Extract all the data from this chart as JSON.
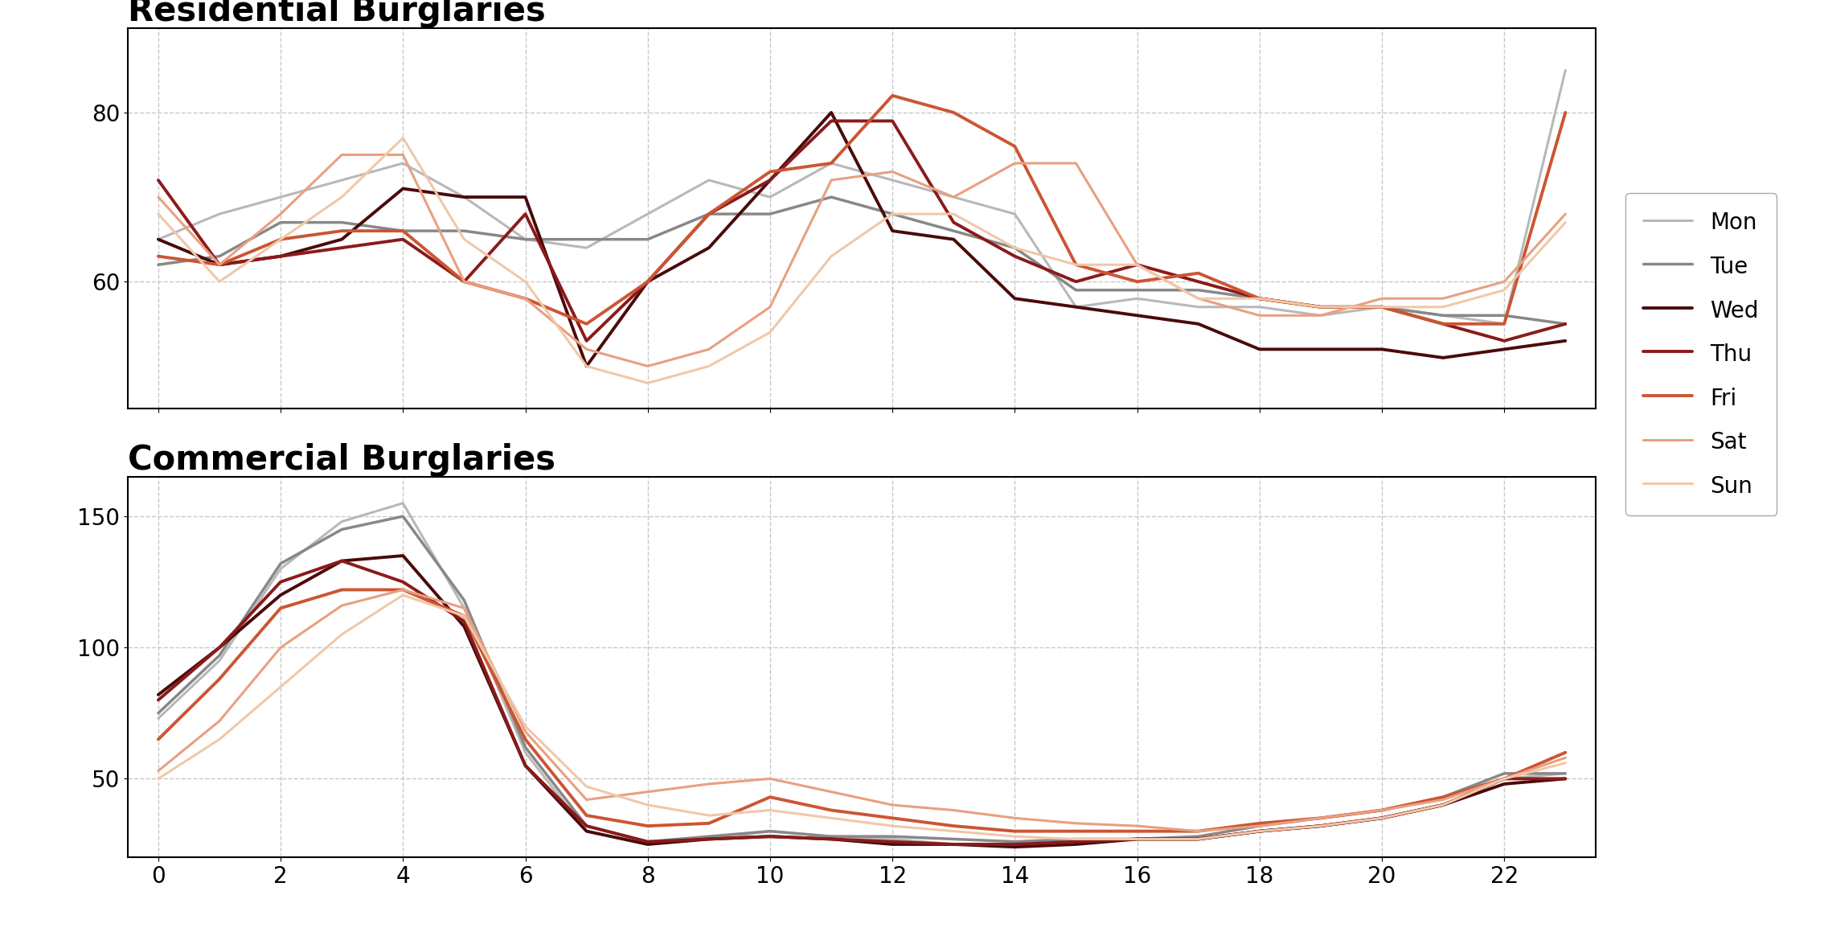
{
  "title_top": "Residential Burglaries",
  "title_bottom": "Commercial Burglaries",
  "days": [
    "Mon",
    "Tue",
    "Wed",
    "Thu",
    "Fri",
    "Sat",
    "Sun"
  ],
  "colors": {
    "Mon": "#b8b8b8",
    "Tue": "#888888",
    "Wed": "#4a0a0a",
    "Thu": "#8b1a1a",
    "Fri": "#cc5533",
    "Sat": "#e8a080",
    "Sun": "#f0c8a8"
  },
  "linewidths": {
    "Mon": 2.2,
    "Tue": 2.5,
    "Wed": 2.8,
    "Thu": 2.8,
    "Fri": 2.8,
    "Sat": 2.2,
    "Sun": 2.2
  },
  "x": [
    0,
    1,
    2,
    3,
    4,
    5,
    6,
    7,
    8,
    9,
    10,
    11,
    12,
    13,
    14,
    15,
    16,
    17,
    18,
    19,
    20,
    21,
    22,
    23
  ],
  "residential": {
    "Mon": [
      65,
      68,
      70,
      72,
      74,
      70,
      65,
      64,
      68,
      72,
      70,
      74,
      72,
      70,
      68,
      57,
      58,
      57,
      57,
      56,
      57,
      56,
      55,
      85
    ],
    "Tue": [
      62,
      63,
      67,
      67,
      66,
      66,
      65,
      65,
      65,
      68,
      68,
      70,
      68,
      66,
      64,
      59,
      59,
      59,
      58,
      57,
      57,
      56,
      56,
      55
    ],
    "Wed": [
      65,
      62,
      63,
      65,
      71,
      70,
      70,
      50,
      60,
      64,
      72,
      80,
      66,
      65,
      58,
      57,
      56,
      55,
      52,
      52,
      52,
      51,
      52,
      53
    ],
    "Thu": [
      72,
      62,
      63,
      64,
      65,
      60,
      68,
      53,
      60,
      68,
      72,
      79,
      79,
      67,
      63,
      60,
      62,
      60,
      58,
      57,
      57,
      55,
      53,
      55
    ],
    "Fri": [
      63,
      62,
      65,
      66,
      66,
      60,
      58,
      55,
      60,
      68,
      73,
      74,
      82,
      80,
      76,
      62,
      60,
      61,
      58,
      57,
      57,
      55,
      55,
      80
    ],
    "Sat": [
      70,
      62,
      68,
      75,
      75,
      60,
      58,
      52,
      50,
      52,
      57,
      72,
      73,
      70,
      74,
      74,
      62,
      58,
      56,
      56,
      58,
      58,
      60,
      68
    ],
    "Sun": [
      68,
      60,
      65,
      70,
      77,
      65,
      60,
      50,
      48,
      50,
      54,
      63,
      68,
      68,
      64,
      62,
      62,
      58,
      58,
      57,
      57,
      57,
      59,
      67
    ]
  },
  "commercial": {
    "Mon": [
      73,
      95,
      130,
      148,
      155,
      115,
      60,
      30,
      25,
      27,
      30,
      28,
      27,
      25,
      25,
      26,
      27,
      27,
      30,
      32,
      35,
      40,
      50,
      52
    ],
    "Tue": [
      75,
      97,
      132,
      145,
      150,
      118,
      62,
      32,
      26,
      28,
      30,
      28,
      28,
      27,
      26,
      27,
      27,
      28,
      32,
      35,
      38,
      43,
      52,
      52
    ],
    "Wed": [
      82,
      100,
      120,
      133,
      135,
      108,
      55,
      30,
      25,
      27,
      28,
      27,
      25,
      25,
      24,
      25,
      27,
      27,
      30,
      32,
      35,
      40,
      48,
      50
    ],
    "Thu": [
      80,
      100,
      125,
      133,
      125,
      110,
      55,
      32,
      26,
      27,
      28,
      27,
      26,
      25,
      25,
      26,
      27,
      27,
      30,
      32,
      35,
      40,
      50,
      50
    ],
    "Fri": [
      65,
      88,
      115,
      122,
      122,
      112,
      65,
      36,
      32,
      33,
      43,
      38,
      35,
      32,
      30,
      30,
      30,
      30,
      33,
      35,
      38,
      43,
      50,
      60
    ],
    "Sat": [
      53,
      72,
      100,
      116,
      122,
      115,
      68,
      42,
      45,
      48,
      50,
      45,
      40,
      38,
      35,
      33,
      32,
      30,
      32,
      35,
      38,
      42,
      50,
      58
    ],
    "Sun": [
      50,
      65,
      85,
      105,
      120,
      112,
      70,
      47,
      40,
      36,
      38,
      35,
      32,
      30,
      28,
      27,
      27,
      27,
      30,
      32,
      35,
      40,
      50,
      56
    ]
  },
  "xlim": [
    -0.5,
    23.5
  ],
  "res_ylim": [
    45,
    90
  ],
  "com_ylim": [
    20,
    165
  ],
  "xticks": [
    0,
    2,
    4,
    6,
    8,
    10,
    12,
    14,
    16,
    18,
    20,
    22
  ],
  "res_yticks": [
    60,
    80
  ],
  "com_yticks": [
    50,
    100,
    150
  ],
  "title_fontsize": 30,
  "tick_fontsize": 20,
  "legend_fontsize": 20,
  "background_color": "#ffffff",
  "grid_color": "#c8c8c8",
  "grid_style": "--"
}
